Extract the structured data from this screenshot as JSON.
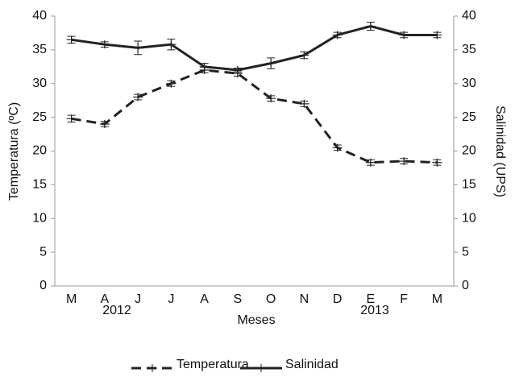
{
  "chart_data": {
    "type": "line",
    "categories": [
      "M",
      "A",
      "J",
      "J",
      "A",
      "S",
      "O",
      "N",
      "D",
      "E",
      "F",
      "M"
    ],
    "annotations": [
      "2012",
      "2013"
    ],
    "x_label": "Meses",
    "y_label": "Temperatura (ºC)",
    "y2_label": "Salinidad (UPS)",
    "ylim": [
      0,
      40
    ],
    "yticks": [
      0,
      5,
      10,
      15,
      20,
      25,
      30,
      35,
      40
    ],
    "y2lim": [
      0,
      40
    ],
    "y2ticks": [
      0,
      5,
      10,
      15,
      20,
      25,
      30,
      35,
      40
    ],
    "legend": "bottom",
    "series": [
      {
        "name": "Temperatura",
        "color": "#222222",
        "dash": true,
        "values": [
          24.8,
          24.0,
          28.0,
          30.0,
          32.0,
          31.5,
          27.8,
          27.0,
          20.5,
          18.3,
          18.5,
          18.3
        ],
        "errors": [
          0.5,
          0.4,
          0.4,
          0.4,
          0.4,
          0.4,
          0.4,
          0.4,
          0.4,
          0.4,
          0.4,
          0.4
        ]
      },
      {
        "name": "Salinidad",
        "color": "#222222",
        "dash": false,
        "axis": "y2",
        "values": [
          36.5,
          35.8,
          35.3,
          35.8,
          32.5,
          32.0,
          33.0,
          34.2,
          37.2,
          38.5,
          37.2,
          37.2
        ],
        "errors": [
          0.5,
          0.4,
          1.0,
          0.8,
          0.5,
          0.3,
          0.8,
          0.5,
          0.4,
          0.6,
          0.4,
          0.4
        ]
      }
    ]
  }
}
